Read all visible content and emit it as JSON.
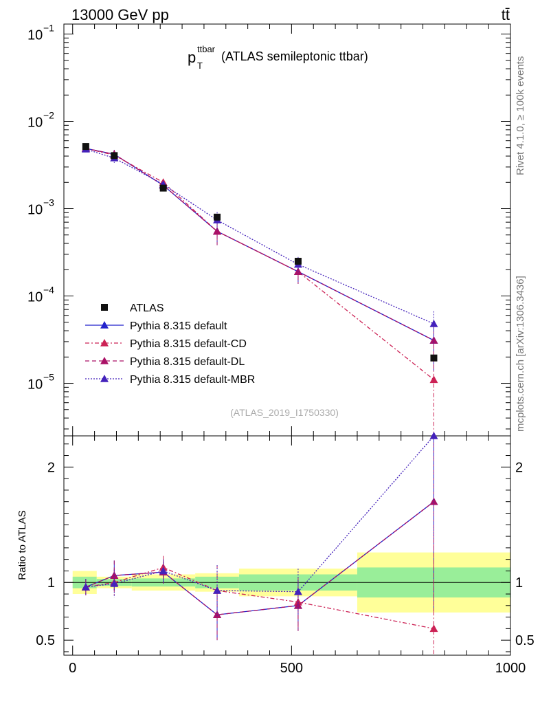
{
  "header": {
    "energy_label": "13000 GeV pp",
    "process_label": "tt̄"
  },
  "side_labels": {
    "rivet": "Rivet 4.1.0, ≥ 100k events",
    "source": "mcplots.cern.ch [arXiv:1306.3436]"
  },
  "chart_data": {
    "type": "line",
    "title": "(ATLAS semileptonic ttbar)",
    "title_main": "p",
    "title_sub": "T",
    "title_sup": "ttbar",
    "analysis_tag": "(ATLAS_2019_I1750330)",
    "xlabel": "",
    "ylabel": "",
    "ratio_ylabel": "Ratio to ATLAS",
    "xlim": [
      -20,
      1000
    ],
    "ylim_log": [
      2.5e-06,
      0.13
    ],
    "ratio_ylim": [
      0.37,
      2.27
    ],
    "x_ticks": [
      0,
      500,
      1000
    ],
    "x_tick_labels": [
      "0",
      "500",
      "1000"
    ],
    "y_ticks": [
      0.1,
      0.01,
      0.001,
      0.0001,
      1e-05
    ],
    "y_tick_labels": [
      {
        "base": "10",
        "exp": "−1"
      },
      {
        "base": "10",
        "exp": "−2"
      },
      {
        "base": "10",
        "exp": "−3"
      },
      {
        "base": "10",
        "exp": "−4"
      },
      {
        "base": "10",
        "exp": "−5"
      }
    ],
    "ratio_ticks": [
      0.5,
      1,
      2
    ],
    "ratio_tick_labels": [
      "0.5",
      "1",
      "2"
    ],
    "data": {
      "name": "ATLAS",
      "x": [
        30,
        95,
        207,
        330,
        515,
        825
      ],
      "y": [
        0.00515,
        0.00405,
        0.00172,
        0.0008,
        0.00025,
        1.95e-05
      ],
      "bins": [
        [
          0,
          55
        ],
        [
          55,
          135
        ],
        [
          135,
          280
        ],
        [
          280,
          380
        ],
        [
          380,
          650
        ],
        [
          650,
          1000
        ]
      ],
      "band_stat": [
        0.05,
        0.03,
        0.035,
        0.05,
        0.07,
        0.13
      ],
      "band_total": [
        0.1,
        0.05,
        0.07,
        0.08,
        0.12,
        0.26
      ]
    },
    "series": [
      {
        "name": "Pythia 8.315 default",
        "color": "#2222cc",
        "dash": "",
        "y": [
          0.0049,
          0.0042,
          0.00185,
          0.00055,
          0.00019,
          3.1e-05
        ],
        "ratio": [
          0.96,
          1.06,
          1.09,
          0.72,
          0.8,
          1.7
        ],
        "ratio_err": [
          0.07,
          0.13,
          0.1,
          0.22,
          0.22,
          0.95
        ]
      },
      {
        "name": "Pythia 8.315 default-CD",
        "color": "#cc2255",
        "dash": "6,3,2,3",
        "y": [
          0.0049,
          0.0041,
          0.002,
          0.00055,
          0.00019,
          1.1e-05
        ],
        "ratio": [
          0.96,
          1.0,
          1.13,
          0.93,
          0.83,
          0.6
        ],
        "ratio_err": [
          0.07,
          0.12,
          0.1,
          0.22,
          0.22,
          0.9
        ]
      },
      {
        "name": "Pythia 8.315 default-DL",
        "color": "#aa1166",
        "dash": "6,4",
        "y": [
          0.0049,
          0.0042,
          0.00185,
          0.00055,
          0.00019,
          3.1e-05
        ],
        "ratio": [
          0.96,
          1.06,
          1.09,
          0.72,
          0.8,
          1.7
        ],
        "ratio_err": [
          0.07,
          0.13,
          0.1,
          0.22,
          0.22,
          0.95
        ]
      },
      {
        "name": "Pythia 8.315 default-MBR",
        "color": "#4422bb",
        "dash": "2,2",
        "y": [
          0.0048,
          0.0038,
          0.0019,
          0.00074,
          0.00023,
          4.8e-05
        ],
        "ratio": [
          0.96,
          0.99,
          1.1,
          0.93,
          0.92,
          2.27
        ],
        "ratio_err": [
          0.07,
          0.12,
          0.1,
          0.22,
          0.2,
          0.9
        ]
      }
    ]
  }
}
